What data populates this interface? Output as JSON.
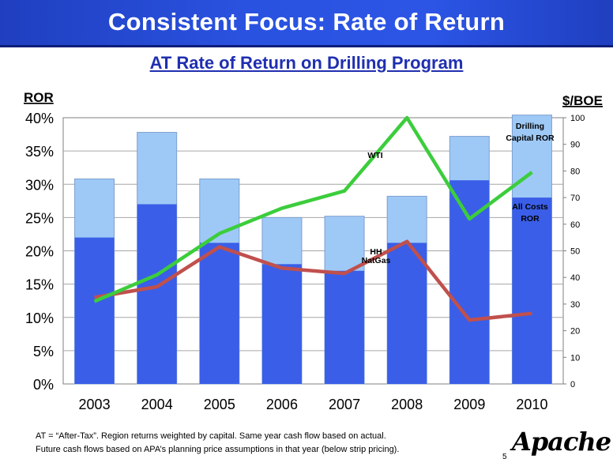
{
  "header": {
    "title": "Consistent Focus: Rate of Return"
  },
  "footnote": {
    "line1": "AT = “After-Tax”.  Region returns weighted by capital. Same year cash flow based on actual.",
    "line2": "Future cash flows based on APA’s planning price assumptions in that year (below strip pricing)."
  },
  "page_number": "5",
  "logo_text": "Apache",
  "chart_data": {
    "type": "bar",
    "title": "AT Rate of Return on Drilling Program",
    "ylabel_left": "ROR",
    "ylabel_right": "$/BOE",
    "categories": [
      "2003",
      "2004",
      "2005",
      "2006",
      "2007",
      "2008",
      "2009",
      "2010"
    ],
    "y_left_ticks": [
      "0%",
      "5%",
      "10%",
      "15%",
      "20%",
      "25%",
      "30%",
      "35%",
      "40%"
    ],
    "y_right_ticks": [
      "0",
      "10",
      "20",
      "30",
      "40",
      "50",
      "60",
      "70",
      "80",
      "90",
      "100"
    ],
    "ylim_left": [
      0,
      40
    ],
    "ylim_right": [
      0,
      100
    ],
    "series": [
      {
        "name": "All Costs ROR",
        "kind": "bar",
        "axis": "left",
        "color": "#3a5ee8",
        "values": [
          22,
          27,
          21.2,
          18,
          17,
          21.2,
          30.6,
          28
        ]
      },
      {
        "name": "Drilling Capital ROR",
        "kind": "bar",
        "axis": "left",
        "color": "#9ec9f6",
        "values": [
          30.8,
          37.8,
          30.8,
          25,
          25.2,
          28.2,
          37.2,
          40.4
        ]
      },
      {
        "name": "WTI",
        "kind": "line",
        "axis": "right",
        "color": "#3ccd3c",
        "values": [
          31,
          41,
          56.5,
          66,
          72.5,
          100,
          62,
          79.5
        ]
      },
      {
        "name": "HH NatGas",
        "kind": "line",
        "axis": "right",
        "color": "#c0504d",
        "values": [
          32.5,
          36.5,
          51.5,
          43.5,
          41.5,
          53.5,
          24,
          26.5
        ]
      }
    ],
    "annotations": {
      "drilling_label_1": "Drilling",
      "drilling_label_2": "Capital ROR",
      "allcosts_label_1": "All Costs",
      "allcosts_label_2": "ROR",
      "wti_label": "WTI",
      "hh_label_1": "HH",
      "hh_label_2": "NatGas"
    },
    "grid": true
  }
}
